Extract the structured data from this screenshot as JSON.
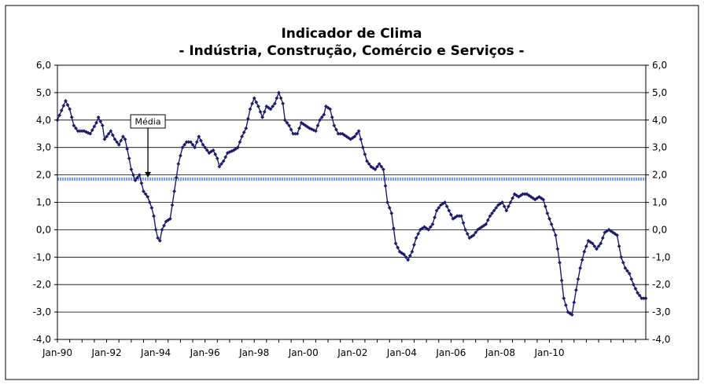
{
  "chart_data": {
    "type": "line",
    "title": "Indicador de Clima",
    "subtitle": "- Indústria, Construção, Comércio e Serviços -",
    "xlabel": "",
    "ylabel": "",
    "x_start": "Jan-90",
    "x_tick_labels": [
      "Jan-90",
      "Jan-92",
      "Jan-94",
      "Jan-96",
      "Jan-98",
      "Jan-00",
      "Jan-02",
      "Jan-04",
      "Jan-06",
      "Jan-08",
      "Jan-10"
    ],
    "y_tick_labels": [
      "6,0",
      "5,0",
      "4,0",
      "3,0",
      "2,0",
      "1,0",
      "0,0",
      "-1,0",
      "-2,0",
      "-3,0",
      "-4,0"
    ],
    "ylim": [
      -4,
      6
    ],
    "grid": true,
    "annotation": {
      "label": "Média",
      "value": 1.85
    },
    "series_color": "#1f1a6e",
    "mean_line_color": "#7799ee",
    "keypoints": [
      [
        0,
        4.0
      ],
      [
        2,
        4.35
      ],
      [
        4,
        4.7
      ],
      [
        6,
        4.4
      ],
      [
        8,
        3.8
      ],
      [
        10,
        3.6
      ],
      [
        13,
        3.6
      ],
      [
        16,
        3.5
      ],
      [
        19,
        3.9
      ],
      [
        20,
        4.1
      ],
      [
        22,
        3.8
      ],
      [
        23,
        3.3
      ],
      [
        26,
        3.6
      ],
      [
        28,
        3.3
      ],
      [
        30,
        3.1
      ],
      [
        32,
        3.4
      ],
      [
        33,
        3.3
      ],
      [
        35,
        2.6
      ],
      [
        36,
        2.2
      ],
      [
        38,
        1.8
      ],
      [
        40,
        2.0
      ],
      [
        42,
        1.4
      ],
      [
        44,
        1.2
      ],
      [
        46,
        0.8
      ],
      [
        47,
        0.5
      ],
      [
        48,
        0.0
      ],
      [
        49,
        -0.3
      ],
      [
        50,
        -0.4
      ],
      [
        51,
        0.0
      ],
      [
        53,
        0.3
      ],
      [
        55,
        0.4
      ],
      [
        56,
        0.9
      ],
      [
        58,
        1.9
      ],
      [
        59,
        2.4
      ],
      [
        60,
        2.7
      ],
      [
        61,
        3.0
      ],
      [
        63,
        3.2
      ],
      [
        65,
        3.2
      ],
      [
        67,
        3.0
      ],
      [
        69,
        3.4
      ],
      [
        71,
        3.1
      ],
      [
        74,
        2.8
      ],
      [
        76,
        2.9
      ],
      [
        78,
        2.6
      ],
      [
        79,
        2.3
      ],
      [
        81,
        2.5
      ],
      [
        83,
        2.8
      ],
      [
        86,
        2.9
      ],
      [
        88,
        3.0
      ],
      [
        90,
        3.4
      ],
      [
        92,
        3.7
      ],
      [
        94,
        4.4
      ],
      [
        96,
        4.8
      ],
      [
        98,
        4.5
      ],
      [
        100,
        4.1
      ],
      [
        102,
        4.5
      ],
      [
        104,
        4.4
      ],
      [
        106,
        4.6
      ],
      [
        108,
        5.0
      ],
      [
        110,
        4.6
      ],
      [
        111,
        4.0
      ],
      [
        113,
        3.8
      ],
      [
        115,
        3.5
      ],
      [
        117,
        3.5
      ],
      [
        119,
        3.9
      ],
      [
        121,
        3.8
      ],
      [
        123,
        3.7
      ],
      [
        126,
        3.6
      ],
      [
        128,
        4.0
      ],
      [
        130,
        4.2
      ],
      [
        131,
        4.5
      ],
      [
        133,
        4.4
      ],
      [
        135,
        3.8
      ],
      [
        137,
        3.5
      ],
      [
        139,
        3.5
      ],
      [
        141,
        3.4
      ],
      [
        143,
        3.3
      ],
      [
        145,
        3.4
      ],
      [
        147,
        3.6
      ],
      [
        149,
        3.0
      ],
      [
        151,
        2.5
      ],
      [
        153,
        2.3
      ],
      [
        155,
        2.2
      ],
      [
        157,
        2.4
      ],
      [
        159,
        2.2
      ],
      [
        161,
        1.0
      ],
      [
        163,
        0.6
      ],
      [
        165,
        -0.5
      ],
      [
        167,
        -0.8
      ],
      [
        169,
        -0.9
      ],
      [
        171,
        -1.1
      ],
      [
        173,
        -0.8
      ],
      [
        175,
        -0.3
      ],
      [
        177,
        0.0
      ],
      [
        179,
        0.1
      ],
      [
        181,
        0.0
      ],
      [
        183,
        0.2
      ],
      [
        185,
        0.7
      ],
      [
        187,
        0.9
      ],
      [
        189,
        1.0
      ],
      [
        191,
        0.7
      ],
      [
        193,
        0.4
      ],
      [
        195,
        0.5
      ],
      [
        197,
        0.5
      ],
      [
        199,
        0.0
      ],
      [
        201,
        -0.3
      ],
      [
        203,
        -0.2
      ],
      [
        205,
        0.0
      ],
      [
        207,
        0.1
      ],
      [
        209,
        0.2
      ],
      [
        211,
        0.5
      ],
      [
        213,
        0.7
      ],
      [
        215,
        0.9
      ],
      [
        217,
        1.0
      ],
      [
        219,
        0.7
      ],
      [
        221,
        1.0
      ],
      [
        223,
        1.3
      ],
      [
        225,
        1.2
      ],
      [
        227,
        1.3
      ],
      [
        229,
        1.3
      ],
      [
        231,
        1.2
      ],
      [
        233,
        1.1
      ],
      [
        235,
        1.2
      ],
      [
        237,
        1.1
      ],
      [
        239,
        0.6
      ],
      [
        241,
        0.2
      ],
      [
        243,
        -0.2
      ],
      [
        245,
        -1.2
      ],
      [
        247,
        -2.5
      ],
      [
        249,
        -3.0
      ],
      [
        251,
        -3.1
      ],
      [
        253,
        -2.2
      ],
      [
        255,
        -1.4
      ],
      [
        257,
        -0.8
      ],
      [
        259,
        -0.4
      ],
      [
        261,
        -0.5
      ],
      [
        263,
        -0.7
      ],
      [
        265,
        -0.5
      ],
      [
        267,
        -0.1
      ],
      [
        269,
        0.0
      ],
      [
        271,
        -0.1
      ],
      [
        273,
        -0.2
      ],
      [
        275,
        -1.0
      ],
      [
        277,
        -1.4
      ],
      [
        279,
        -1.6
      ],
      [
        281,
        -2.0
      ],
      [
        283,
        -2.3
      ],
      [
        285,
        -2.5
      ]
    ]
  }
}
